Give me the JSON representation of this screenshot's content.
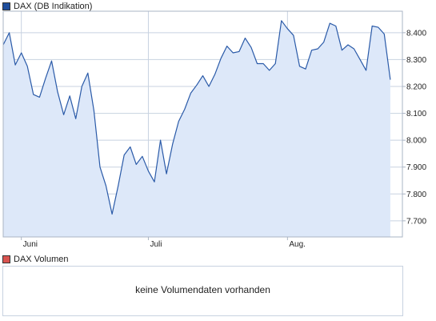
{
  "legend": {
    "price_label": "DAX (DB Indikation)",
    "price_color": "#1f4e9c",
    "volume_label": "DAX Volumen",
    "volume_color": "#d9534f"
  },
  "volume_panel": {
    "message": "keine Volumendaten vorhanden"
  },
  "colors": {
    "line": "#2a5aa8",
    "fill": "#dde8f9",
    "grid": "#c8d2e0",
    "plot_border": "#aab4c4"
  },
  "chart_data": {
    "type": "area",
    "x_tick_labels": [
      {
        "label": "Juni",
        "x": 3
      },
      {
        "label": "Juli",
        "x": 24
      },
      {
        "label": "Aug.",
        "x": 47
      }
    ],
    "y_ticks": [
      7700,
      7800,
      7900,
      8000,
      8100,
      8200,
      8300,
      8400
    ],
    "y_tick_labels": [
      "7.700",
      "7.800",
      "7.900",
      "8.000",
      "8.100",
      "8.200",
      "8.300",
      "8.400"
    ],
    "ylim": [
      7640,
      8480
    ],
    "xlim": [
      0,
      66
    ],
    "grid": true,
    "series": [
      {
        "values": [
          8355,
          8400,
          8280,
          8325,
          8275,
          8170,
          8160,
          8230,
          8295,
          8180,
          8095,
          8165,
          8080,
          8200,
          8250,
          8110,
          7900,
          7830,
          7725,
          7830,
          7945,
          7975,
          7910,
          7940,
          7885,
          7845,
          8000,
          7875,
          7985,
          8070,
          8115,
          8175,
          8205,
          8240,
          8200,
          8245,
          8305,
          8350,
          8325,
          8330,
          8380,
          8345,
          8285,
          8285,
          8260,
          8285,
          8445,
          8415,
          8390,
          8275,
          8265,
          8335,
          8340,
          8365,
          8435,
          8425,
          8335,
          8355,
          8340,
          8300,
          8260,
          8425,
          8420,
          8395,
          8225
        ]
      }
    ]
  }
}
